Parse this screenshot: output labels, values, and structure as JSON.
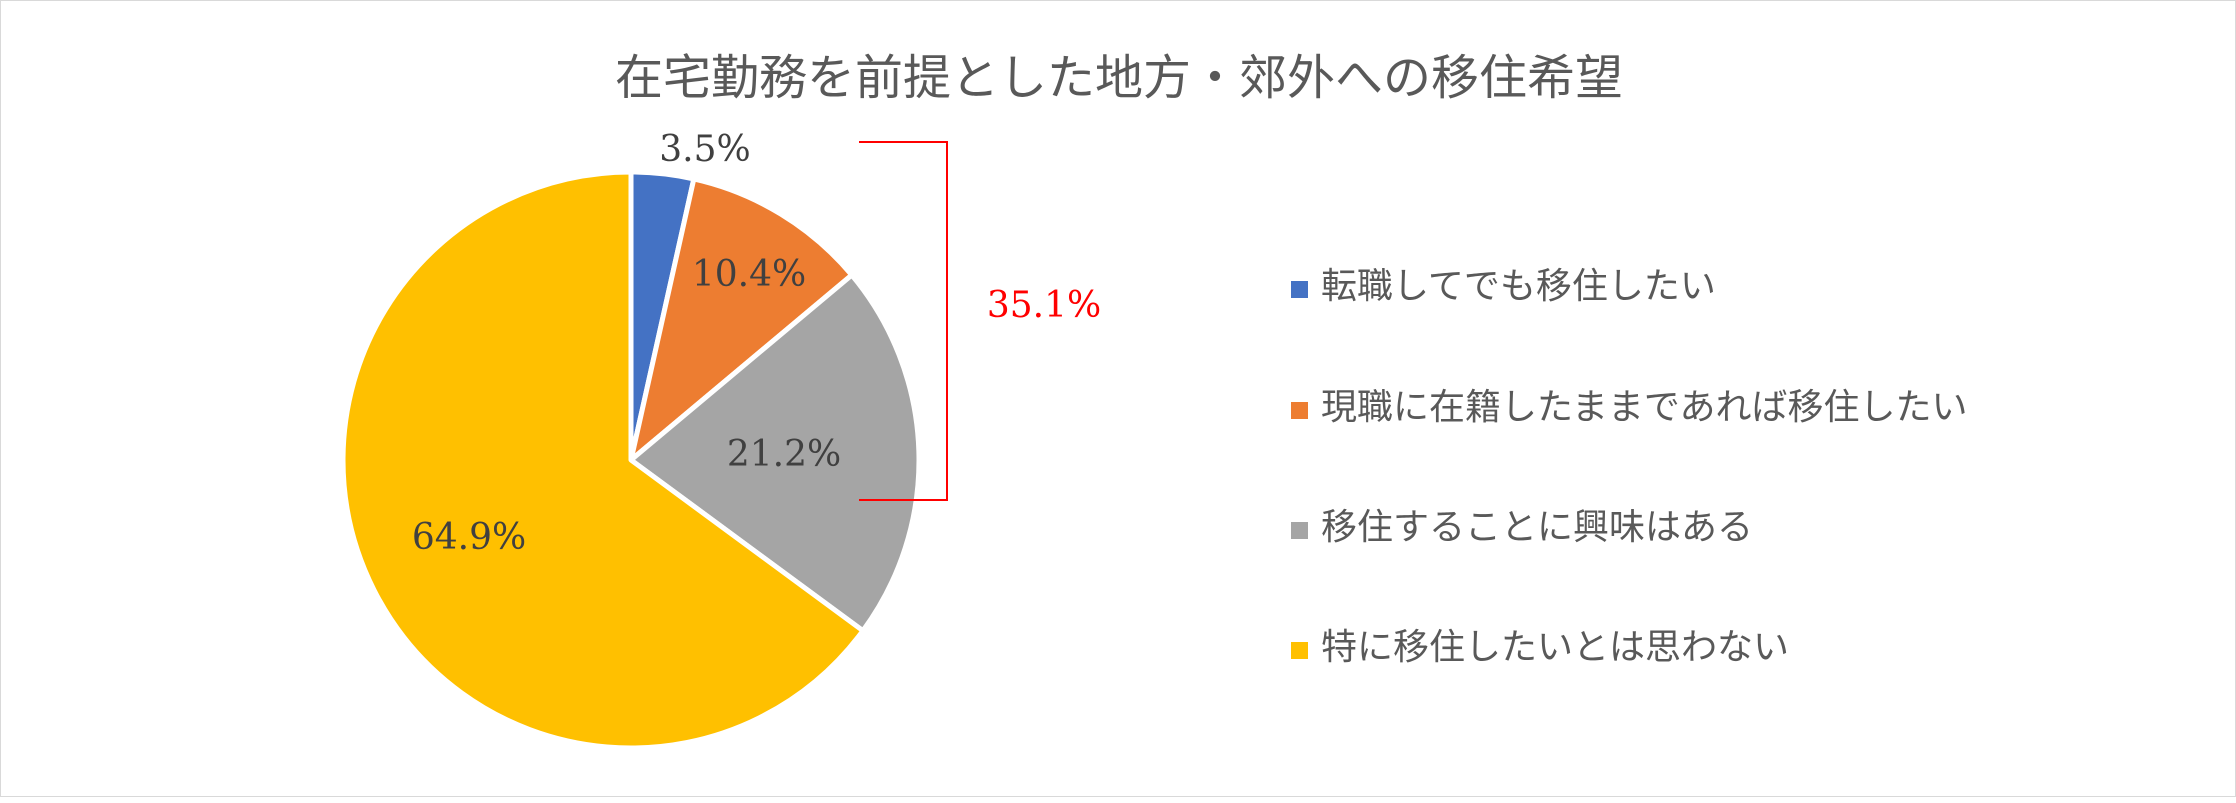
{
  "chart_data": {
    "type": "pie",
    "title": "在宅勤務を前提とした地方・郊外への移住希望",
    "slices": [
      {
        "label": "転職してでも移住したい",
        "value": 3.5,
        "display": "3.5%",
        "color": "#4472C4"
      },
      {
        "label": "現職に在籍したままであれば移住したい",
        "value": 10.4,
        "display": "10.4%",
        "color": "#ED7D31"
      },
      {
        "label": "移住することに興味はある",
        "value": 21.2,
        "display": "21.2%",
        "color": "#A5A5A5"
      },
      {
        "label": "特に移住したいとは思わない",
        "value": 64.9,
        "display": "64.9%",
        "color": "#FFC000"
      }
    ],
    "legend_position": "right",
    "annotation": {
      "text": "35.1%",
      "color": "#FF0000"
    }
  }
}
